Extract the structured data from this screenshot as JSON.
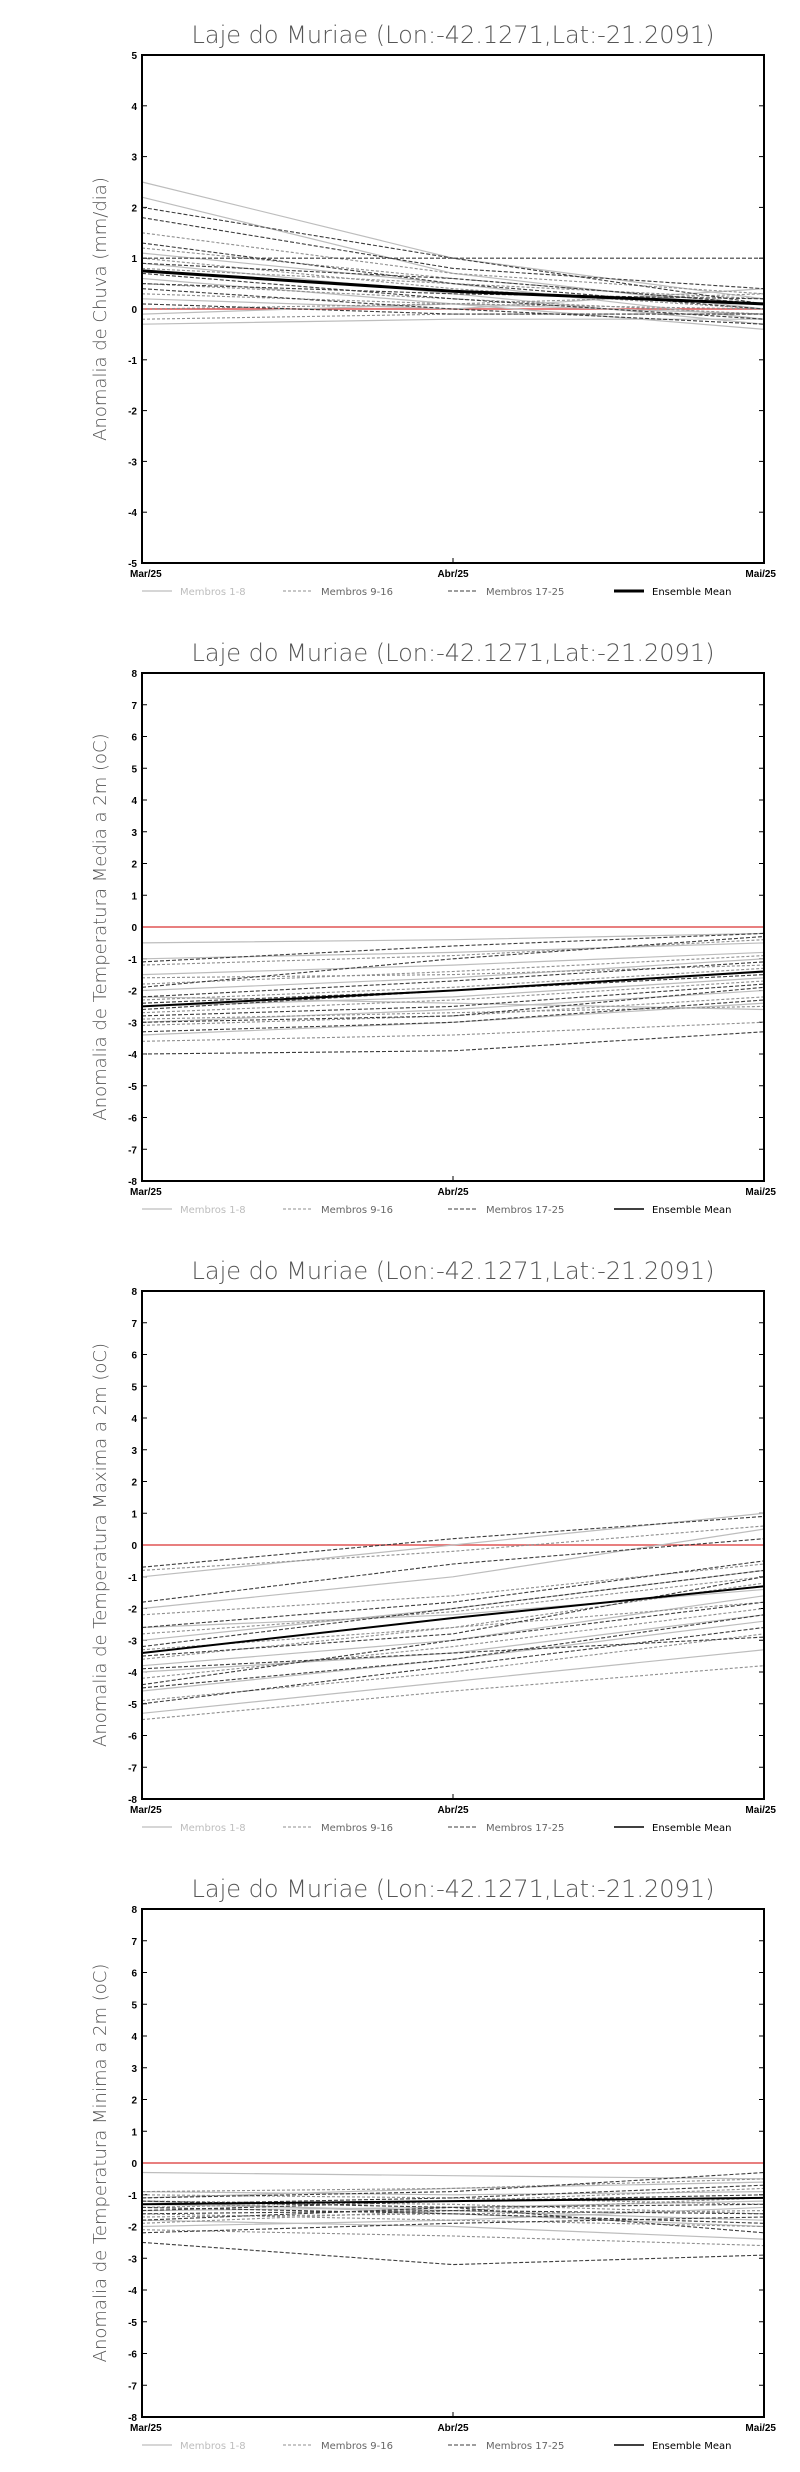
{
  "figure": {
    "legend": [
      "Membros 1-8",
      "Membros 9-16",
      "Membros 17-25",
      "Ensemble Mean"
    ]
  },
  "colors": {
    "members_light": "#bdbdbd",
    "members_mid": "#8f8f8f",
    "members_dark": "#3c3c3c",
    "mean": "#000000",
    "zero": "#e05555",
    "text": "#555555"
  },
  "chart_data": [
    {
      "type": "line",
      "title": "Laje do Muriae (Lon:-42.1271,Lat:-21.2091)",
      "ylabel": "Anomalia de Chuva (mm/dia)",
      "x": [
        "Mar/25",
        "Abr/25",
        "Mai/25"
      ],
      "ylim": [
        -5,
        5
      ],
      "yticks": [
        -5,
        -4,
        -3,
        -2,
        -1,
        0,
        1,
        2,
        3,
        4,
        5
      ],
      "legend_position": "bottom",
      "mean_style": "thick",
      "series": [
        {
          "name": "Membros 1-8",
          "style": "light",
          "lines": [
            [
              2.5,
              1.0,
              0.2
            ],
            [
              2.2,
              0.7,
              0.0
            ],
            [
              1.1,
              0.5,
              -0.2
            ],
            [
              0.9,
              0.3,
              -0.3
            ],
            [
              0.6,
              0.1,
              -0.4
            ],
            [
              0.2,
              0.0,
              0.4
            ],
            [
              -0.1,
              0.1,
              -0.1
            ],
            [
              -0.3,
              -0.2,
              -0.2
            ]
          ]
        },
        {
          "name": "Membros 9-16",
          "style": "mid",
          "lines": [
            [
              1.5,
              0.7,
              0.3
            ],
            [
              1.2,
              0.6,
              0.1
            ],
            [
              1.0,
              0.4,
              0.0
            ],
            [
              0.8,
              0.5,
              0.2
            ],
            [
              0.5,
              0.2,
              -0.1
            ],
            [
              0.3,
              0.1,
              0.0
            ],
            [
              0.0,
              0.1,
              0.3
            ],
            [
              -0.2,
              -0.1,
              -0.1
            ]
          ]
        },
        {
          "name": "Membros 17-25",
          "style": "dark",
          "lines": [
            [
              2.0,
              1.0,
              0.1
            ],
            [
              1.8,
              0.8,
              0.4
            ],
            [
              1.3,
              0.5,
              0.0
            ],
            [
              1.0,
              1.0,
              1.0
            ],
            [
              0.9,
              0.6,
              0.1
            ],
            [
              0.7,
              0.2,
              -0.2
            ],
            [
              0.5,
              0.3,
              0.2
            ],
            [
              0.4,
              0.0,
              -0.3
            ],
            [
              0.1,
              -0.1,
              -0.1
            ]
          ]
        },
        {
          "name": "Ensemble Mean",
          "style": "mean",
          "lines": [
            [
              0.75,
              0.35,
              0.1
            ]
          ]
        }
      ]
    },
    {
      "type": "line",
      "title": "Laje do Muriae (Lon:-42.1271,Lat:-21.2091)",
      "ylabel": "Anomalia de Temperatura Media a 2m (oC)",
      "x": [
        "Mar/25",
        "Abr/25",
        "Mai/25"
      ],
      "ylim": [
        -8,
        8
      ],
      "yticks": [
        -8,
        -7,
        -6,
        -5,
        -4,
        -3,
        -2,
        -1,
        0,
        1,
        2,
        3,
        4,
        5,
        6,
        7,
        8
      ],
      "legend_position": "bottom",
      "mean_style": "normal",
      "series": [
        {
          "name": "Membros 1-8",
          "style": "light",
          "lines": [
            [
              -0.5,
              -0.4,
              -0.2
            ],
            [
              -1.0,
              -0.8,
              -0.5
            ],
            [
              -2.0,
              -1.6,
              -1.0
            ],
            [
              -2.5,
              -2.2,
              -1.6
            ],
            [
              -3.0,
              -2.6,
              -2.0
            ],
            [
              -3.4,
              -3.0,
              -2.4
            ],
            [
              -2.2,
              -2.4,
              -2.6
            ],
            [
              -1.5,
              -1.2,
              -0.8
            ]
          ]
        },
        {
          "name": "Membros 9-16",
          "style": "mid",
          "lines": [
            [
              -1.2,
              -0.9,
              -0.4
            ],
            [
              -1.8,
              -1.4,
              -0.9
            ],
            [
              -2.3,
              -1.9,
              -1.3
            ],
            [
              -2.7,
              -2.3,
              -1.7
            ],
            [
              -3.1,
              -2.8,
              -2.2
            ],
            [
              -1.6,
              -1.5,
              -1.2
            ],
            [
              -2.9,
              -2.7,
              -2.5
            ],
            [
              -3.6,
              -3.4,
              -3.0
            ]
          ]
        },
        {
          "name": "Membros 17-25",
          "style": "dark",
          "lines": [
            [
              -1.1,
              -0.6,
              -0.2
            ],
            [
              -1.9,
              -1.0,
              -0.3
            ],
            [
              -2.2,
              -1.7,
              -1.1
            ],
            [
              -2.6,
              -2.0,
              -1.5
            ],
            [
              -2.8,
              -2.5,
              -1.8
            ],
            [
              -3.3,
              -3.0,
              -2.3
            ],
            [
              -4.0,
              -3.9,
              -3.3
            ],
            [
              -2.4,
              -2.0,
              -1.4
            ],
            [
              -3.0,
              -2.8,
              -1.9
            ]
          ]
        },
        {
          "name": "Ensemble Mean",
          "style": "mean",
          "lines": [
            [
              -2.5,
              -2.0,
              -1.4
            ]
          ]
        }
      ]
    },
    {
      "type": "line",
      "title": "Laje do Muriae (Lon:-42.1271,Lat:-21.2091)",
      "ylabel": "Anomalia de Temperatura Maxima a 2m (oC)",
      "x": [
        "Mar/25",
        "Abr/25",
        "Mai/25"
      ],
      "ylim": [
        -8,
        8
      ],
      "yticks": [
        -8,
        -7,
        -6,
        -5,
        -4,
        -3,
        -2,
        -1,
        0,
        1,
        2,
        3,
        4,
        5,
        6,
        7,
        8
      ],
      "legend_position": "bottom",
      "mean_style": "normal",
      "series": [
        {
          "name": "Membros 1-8",
          "style": "light",
          "lines": [
            [
              -1.0,
              0.0,
              1.0
            ],
            [
              -2.0,
              -1.0,
              0.5
            ],
            [
              -3.0,
              -2.0,
              -0.8
            ],
            [
              -3.8,
              -3.0,
              -1.6
            ],
            [
              -4.6,
              -3.6,
              -2.4
            ],
            [
              -5.3,
              -4.3,
              -3.3
            ],
            [
              -2.6,
              -2.2,
              -1.4
            ],
            [
              -4.0,
              -3.4,
              -2.2
            ]
          ]
        },
        {
          "name": "Membros 9-16",
          "style": "mid",
          "lines": [
            [
              -0.8,
              -0.2,
              0.6
            ],
            [
              -2.8,
              -2.1,
              -1.0
            ],
            [
              -3.3,
              -2.6,
              -1.2
            ],
            [
              -4.2,
              -3.2,
              -2.0
            ],
            [
              -4.9,
              -4.0,
              -2.8
            ],
            [
              -5.5,
              -4.6,
              -3.8
            ],
            [
              -3.6,
              -2.6,
              -1.8
            ],
            [
              -2.2,
              -1.6,
              -0.6
            ]
          ]
        },
        {
          "name": "Membros 17-25",
          "style": "dark",
          "lines": [
            [
              -0.7,
              0.2,
              0.9
            ],
            [
              -1.8,
              -0.6,
              0.2
            ],
            [
              -2.6,
              -1.8,
              -0.5
            ],
            [
              -3.2,
              -2.0,
              -0.8
            ],
            [
              -3.5,
              -2.8,
              -1.0
            ],
            [
              -4.4,
              -3.0,
              -1.8
            ],
            [
              -5.0,
              -3.8,
              -2.6
            ],
            [
              -3.9,
              -3.4,
              -2.9
            ],
            [
              -4.5,
              -3.6,
              -2.2
            ]
          ]
        },
        {
          "name": "Ensemble Mean",
          "style": "mean",
          "lines": [
            [
              -3.4,
              -2.3,
              -1.3
            ]
          ]
        }
      ]
    },
    {
      "type": "line",
      "title": "Laje do Muriae (Lon:-42.1271,Lat:-21.2091)",
      "ylabel": "Anomalia de Temperatura Minima a 2m (oC)",
      "x": [
        "Mar/25",
        "Abr/25",
        "Mai/25"
      ],
      "ylim": [
        -8,
        8
      ],
      "yticks": [
        -8,
        -7,
        -6,
        -5,
        -4,
        -3,
        -2,
        -1,
        0,
        1,
        2,
        3,
        4,
        5,
        6,
        7,
        8
      ],
      "legend_position": "bottom",
      "mean_style": "normal",
      "series": [
        {
          "name": "Membros 1-8",
          "style": "light",
          "lines": [
            [
              -0.3,
              -0.4,
              -0.5
            ],
            [
              -0.9,
              -1.0,
              -0.9
            ],
            [
              -1.3,
              -1.5,
              -1.8
            ],
            [
              -1.8,
              -2.0,
              -2.4
            ],
            [
              -1.1,
              -0.8,
              -0.6
            ],
            [
              -1.5,
              -1.4,
              -1.2
            ],
            [
              -2.0,
              -1.8,
              -1.4
            ],
            [
              -1.2,
              -1.6,
              -2.0
            ]
          ]
        },
        {
          "name": "Membros 9-16",
          "style": "mid",
          "lines": [
            [
              -1.0,
              -1.1,
              -1.3
            ],
            [
              -1.4,
              -1.2,
              -0.8
            ],
            [
              -1.7,
              -1.6,
              -1.5
            ],
            [
              -2.1,
              -2.3,
              -2.6
            ],
            [
              -1.2,
              -1.3,
              -1.6
            ],
            [
              -1.6,
              -1.8,
              -2.0
            ],
            [
              -0.9,
              -0.8,
              -0.5
            ],
            [
              -1.9,
              -1.5,
              -1.1
            ]
          ]
        },
        {
          "name": "Membros 17-25",
          "style": "dark",
          "lines": [
            [
              -1.1,
              -0.9,
              -0.3
            ],
            [
              -1.3,
              -1.1,
              -0.7
            ],
            [
              -1.5,
              -1.2,
              -1.0
            ],
            [
              -1.8,
              -1.4,
              -1.3
            ],
            [
              -2.2,
              -1.9,
              -1.7
            ],
            [
              -1.2,
              -1.4,
              -2.2
            ],
            [
              -1.4,
              -1.6,
              -1.9
            ],
            [
              -2.5,
              -3.2,
              -2.9
            ],
            [
              -1.6,
              -1.5,
              -1.6
            ]
          ]
        },
        {
          "name": "Ensemble Mean",
          "style": "mean",
          "lines": [
            [
              -1.3,
              -1.2,
              -1.1
            ]
          ]
        }
      ]
    }
  ]
}
